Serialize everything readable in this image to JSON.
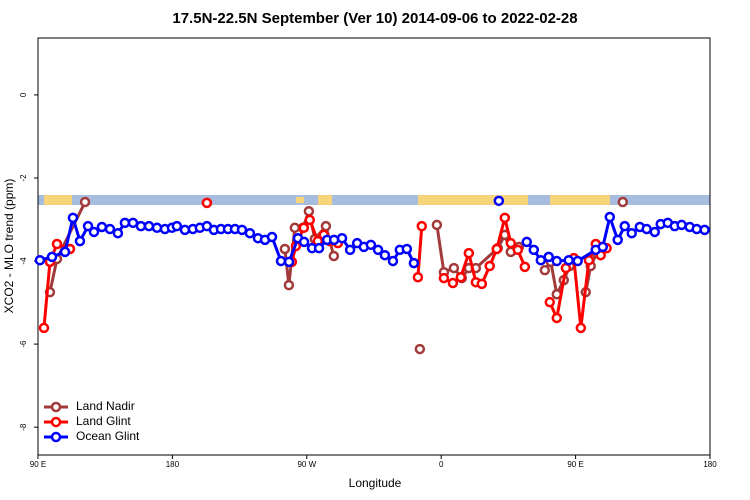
{
  "chart_data": {
    "type": "line",
    "title": "17.5N-22.5N September (Ver 10)   2014-09-06 to 2022-02-28",
    "x_label": "Longitude",
    "y_label": "XCO2 - MLO trend (ppm)",
    "xlim": [
      90,
      540
    ],
    "ylim": [
      -8.67,
      1.37
    ],
    "xticks": [
      {
        "value": 90,
        "label": "90 E"
      },
      180,
      {
        "value": 270,
        "label": "90 W"
      },
      {
        "value": 360,
        "label": "0"
      },
      {
        "value": 450,
        "label": "90 E"
      },
      {
        "value": 540,
        "label": "180"
      }
    ],
    "yticks": [
      0,
      -2,
      -4,
      -6,
      -8
    ],
    "legend": "bottom-left",
    "series": [
      {
        "name": "Land Nadir",
        "color": "#a33a3a",
        "x": [
          98,
          102.7,
          121.5,
          null,
          255.3,
          258,
          262,
          267.4,
          271.4,
          275.4,
          282.8,
          288.1,
          null,
          345.7,
          null,
          357.1,
          361.8,
          368.5,
          373.8,
          378.5,
          383.2,
          397.9,
          402.6,
          406.6,
          412,
          null,
          429.4,
          433.4,
          437.4,
          442.1,
          446.1,
          null,
          456.8,
          460.1,
          464.2,
          null,
          481.6
        ],
        "values": [
          -4.75,
          -3.95,
          -2.58,
          null,
          -3.71,
          -4.58,
          -3.2,
          -3.2,
          -2.8,
          -3.47,
          -3.16,
          -3.88,
          null,
          -6.12,
          null,
          -3.13,
          -4.27,
          -4.17,
          -4.41,
          -4.17,
          -4.17,
          -3.69,
          -3.37,
          -3.78,
          -3.66,
          null,
          -4.22,
          -4.02,
          -4.8,
          -4.46,
          -4.12,
          null,
          -4.75,
          -4.12,
          -3.81,
          null,
          -2.58
        ]
      },
      {
        "name": "Land Glint",
        "color": "#ff0000",
        "x": [
          94,
          98,
          102.7,
          111.4,
          null,
          203.1,
          null,
          260,
          262.7,
          268,
          272,
          277.4,
          281.4,
          285.4,
          290.8,
          null,
          344.4,
          347,
          null,
          361.8,
          367.8,
          373.1,
          378.5,
          383.2,
          387.2,
          392.5,
          397.2,
          402.6,
          406.6,
          411.3,
          416,
          null,
          432.7,
          437.4,
          443.5,
          448.8,
          453.5,
          458.9,
          463.5,
          466.8,
          470.8
        ],
        "values": [
          -5.61,
          -4.02,
          -3.59,
          -3.71,
          null,
          -2.6,
          null,
          -4.02,
          -3.64,
          -3.2,
          -3.01,
          -3.52,
          -3.37,
          -3.52,
          -3.57,
          null,
          -4.39,
          -3.16,
          null,
          -4.41,
          -4.53,
          -4.39,
          -3.81,
          -4.51,
          -4.55,
          -4.12,
          -3.71,
          -2.96,
          -3.57,
          -3.73,
          -4.14,
          null,
          -4.99,
          -5.37,
          -4.17,
          -3.93,
          -5.61,
          -3.98,
          -3.59,
          -3.86,
          -3.69
        ]
      },
      {
        "name": "Ocean Glint",
        "color": "#0000ff",
        "x": [
          91.3,
          99.4,
          108.1,
          113.4,
          118.1,
          123.5,
          127.5,
          132.8,
          138.2,
          143.5,
          148.2,
          153.6,
          158.9,
          164.3,
          169.7,
          175,
          179.7,
          183,
          188.4,
          193.7,
          198.4,
          203.1,
          207.8,
          212.5,
          217.2,
          221.9,
          226.6,
          231.9,
          237.3,
          242,
          246.7,
          252.7,
          258.1,
          264.1,
          268.2,
          273.5,
          278.2,
          283.6,
          288.3,
          293.6,
          299,
          303.7,
          308.2,
          312.9,
          317.7,
          322.3,
          327.7,
          332.3,
          337,
          341.7,
          null,
          398.6,
          null,
          417.3,
          422,
          426.7,
          432,
          437.4,
          445.4,
          451.4,
          463.5,
          468.2,
          472.9,
          478.2,
          482.9,
          487.6,
          493,
          497.6,
          503,
          507,
          511.7,
          516.4,
          521,
          526.4,
          531.1,
          536.4
        ],
        "values": [
          -3.98,
          -3.9,
          -3.78,
          -2.96,
          -3.52,
          -3.16,
          -3.3,
          -3.18,
          -3.23,
          -3.33,
          -3.08,
          -3.08,
          -3.16,
          -3.16,
          -3.2,
          -3.23,
          -3.2,
          -3.16,
          -3.25,
          -3.23,
          -3.2,
          -3.16,
          -3.25,
          -3.23,
          -3.23,
          -3.23,
          -3.25,
          -3.33,
          -3.45,
          -3.49,
          -3.42,
          -4.0,
          -4.02,
          -3.45,
          -3.54,
          -3.69,
          -3.69,
          -3.49,
          -3.49,
          -3.45,
          -3.73,
          -3.57,
          -3.66,
          -3.61,
          -3.73,
          -3.86,
          -4.0,
          -3.73,
          -3.71,
          -4.05,
          null,
          -2.55,
          null,
          -3.54,
          -3.73,
          -3.98,
          -3.9,
          -4.0,
          -3.98,
          -4.0,
          -3.73,
          -3.66,
          -2.94,
          -3.49,
          -3.16,
          -3.33,
          -3.18,
          -3.23,
          -3.3,
          -3.11,
          -3.08,
          -3.16,
          -3.13,
          -3.18,
          -3.23,
          -3.25
        ]
      }
    ]
  }
}
